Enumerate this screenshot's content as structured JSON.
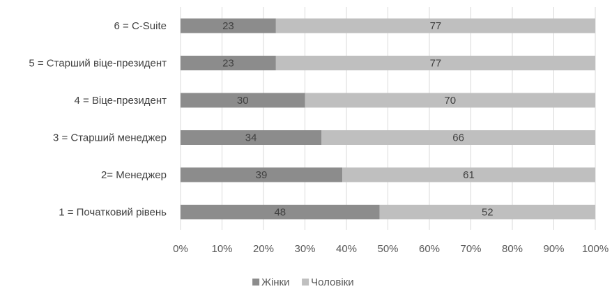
{
  "chart_data": {
    "type": "bar",
    "orientation": "horizontal",
    "stacked": true,
    "categories": [
      "6 = C-Suite",
      "5 = Старший віце-президент",
      "4 = Віце-президент",
      "3 = Старший менеджер",
      "2= Менеджер",
      "1 = Початковий рівень"
    ],
    "series": [
      {
        "name": "Жінки",
        "color": "#8c8c8c",
        "values": [
          23,
          23,
          30,
          34,
          39,
          48
        ]
      },
      {
        "name": "Чоловіки",
        "color": "#bfbfbf",
        "values": [
          77,
          77,
          70,
          66,
          61,
          52
        ]
      }
    ],
    "x_ticks": [
      "0%",
      "10%",
      "20%",
      "30%",
      "40%",
      "50%",
      "60%",
      "70%",
      "80%",
      "90%",
      "100%"
    ],
    "xlim": [
      0,
      100
    ],
    "grid": true,
    "legend_position": "bottom"
  }
}
